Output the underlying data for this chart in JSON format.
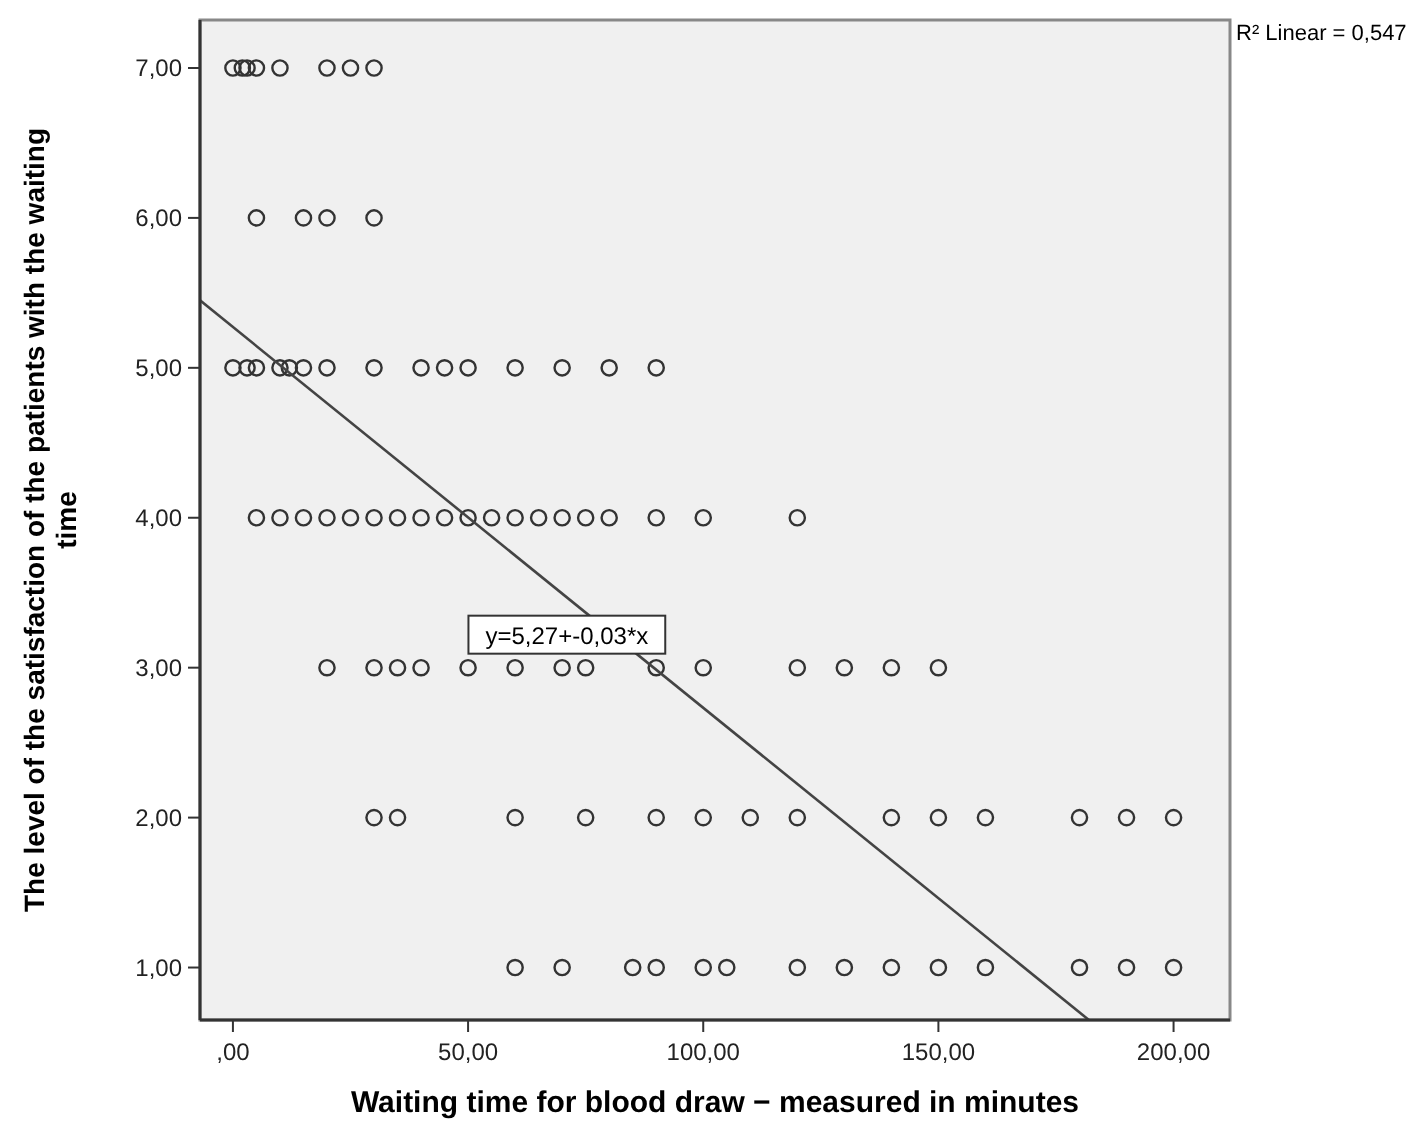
{
  "chart_data": {
    "type": "scatter",
    "xlabel": "Waiting time for blood draw − measured in minutes",
    "ylabel": "The level of the satisfaction of the patients with the waiting time",
    "xlim": [
      -7,
      212
    ],
    "ylim": [
      0.65,
      7.32
    ],
    "xticks": [
      {
        "value": 0,
        "label": ",00"
      },
      {
        "value": 50,
        "label": "50,00"
      },
      {
        "value": 100,
        "label": "100,00"
      },
      {
        "value": 150,
        "label": "150,00"
      },
      {
        "value": 200,
        "label": "200,00"
      }
    ],
    "yticks": [
      {
        "value": 1,
        "label": "1,00"
      },
      {
        "value": 2,
        "label": "2,00"
      },
      {
        "value": 3,
        "label": "3,00"
      },
      {
        "value": 4,
        "label": "4,00"
      },
      {
        "value": 5,
        "label": "5,00"
      },
      {
        "value": 6,
        "label": "6,00"
      },
      {
        "value": 7,
        "label": "7,00"
      }
    ],
    "grid": false,
    "series": [
      {
        "marker": "circle",
        "color": "#333333",
        "x": [
          0,
          2,
          3,
          5,
          10,
          20,
          25,
          30,
          5,
          15,
          20,
          30,
          0,
          3,
          5,
          10,
          12,
          15,
          20,
          30,
          40,
          45,
          50,
          60,
          70,
          80,
          90,
          5,
          10,
          15,
          20,
          25,
          30,
          35,
          40,
          45,
          50,
          55,
          60,
          65,
          70,
          75,
          80,
          90,
          100,
          120,
          20,
          30,
          35,
          40,
          50,
          60,
          70,
          75,
          90,
          100,
          120,
          130,
          140,
          150,
          30,
          35,
          60,
          75,
          90,
          100,
          110,
          120,
          140,
          150,
          160,
          180,
          190,
          200,
          60,
          70,
          85,
          90,
          100,
          105,
          120,
          130,
          140,
          150,
          160,
          180,
          190,
          200
        ],
        "values": [
          7,
          7,
          7,
          7,
          7,
          7,
          7,
          7,
          6,
          6,
          6,
          6,
          5,
          5,
          5,
          5,
          5,
          5,
          5,
          5,
          5,
          5,
          5,
          5,
          5,
          5,
          5,
          4,
          4,
          4,
          4,
          4,
          4,
          4,
          4,
          4,
          4,
          4,
          4,
          4,
          4,
          4,
          4,
          4,
          4,
          4,
          3,
          3,
          3,
          3,
          3,
          3,
          3,
          3,
          3,
          3,
          3,
          3,
          3,
          3,
          2,
          2,
          2,
          2,
          2,
          2,
          2,
          2,
          2,
          2,
          2,
          2,
          2,
          2,
          1,
          1,
          1,
          1,
          1,
          1,
          1,
          1,
          1,
          1,
          1,
          1,
          1,
          1
        ]
      },
      {
        "type": "line",
        "marker": "none",
        "color": "#444444",
        "x": [
          -7,
          182
        ],
        "values": [
          5.45,
          0.65
        ]
      }
    ],
    "annotations": [
      {
        "text": "y=5,27+-0,03*x",
        "x": 71,
        "y": 3
      },
      "R² Linear = 0,547"
    ]
  }
}
